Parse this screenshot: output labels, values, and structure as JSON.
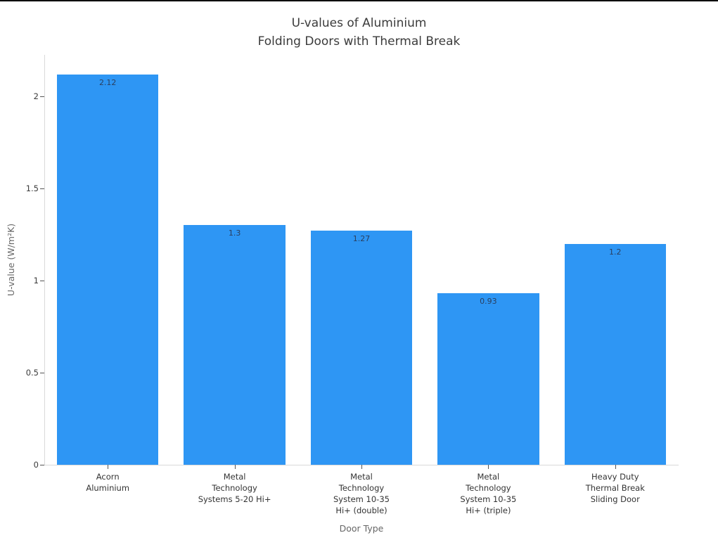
{
  "page": {
    "background_color": "#ffffff",
    "top_edge_line_color": "#000000"
  },
  "chart_data": {
    "type": "bar",
    "title": "U-values of Aluminium\nFolding Doors with Thermal Break",
    "xlabel": "Door Type",
    "ylabel": "U-value (W/m²K)",
    "categories": [
      "Acorn\nAluminium",
      "Metal\nTechnology\nSystems 5-20 Hi+",
      "Metal\nTechnology\nSystem 10-35\nHi+ (double)",
      "Metal\nTechnology\nSystem 10-35\nHi+ (triple)",
      "Heavy Duty\nThermal Break\nSliding Door"
    ],
    "values": [
      2.12,
      1.3,
      1.27,
      0.93,
      1.2
    ],
    "value_labels": [
      "2.12",
      "1.3",
      "1.27",
      "0.93",
      "1.2"
    ],
    "ylim": [
      0,
      2.2257
    ],
    "yticks": [
      0,
      0.5,
      1,
      1.5,
      2
    ],
    "ytick_labels": [
      "0",
      "0.5",
      "1",
      "1.5",
      "2"
    ],
    "grid": false,
    "legend": "none",
    "bar_color": "#2e96f4",
    "value_label_color": "#2a3f5f",
    "tick_label_color": "#3b3b3b",
    "category_label_color": "#333333",
    "axis_title_color": "#666666",
    "axis_line_color": "#d9d9d9",
    "tick_color": "#555555",
    "title_color": "#3b3b3b"
  }
}
